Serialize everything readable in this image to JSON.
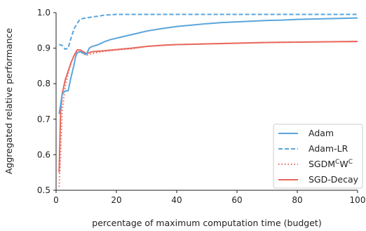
{
  "chart_data": {
    "type": "line",
    "title": "",
    "xlabel": "percentage of maximum computation time (budget)",
    "ylabel": "Aggregated relative performance",
    "xlim": [
      0,
      100
    ],
    "ylim": [
      0.5,
      1.0
    ],
    "x_ticks": [
      0,
      20,
      40,
      60,
      80,
      100
    ],
    "y_ticks": [
      0.5,
      0.6,
      0.7,
      0.8,
      0.9,
      1.0
    ],
    "x_tick_labels": [
      "0",
      "20",
      "40",
      "60",
      "80",
      "100"
    ],
    "y_tick_labels": [
      "0.5",
      "0.6",
      "0.7",
      "0.8",
      "0.9",
      "1.0"
    ],
    "grid": false,
    "legend_position": "lower-right",
    "series": [
      {
        "name": "Adam",
        "color": "#5aa5dc",
        "style": "solid",
        "x": [
          1,
          1.5,
          2,
          3,
          4,
          5,
          6,
          6.5,
          7,
          8,
          9,
          10,
          11,
          12,
          14,
          16,
          18,
          20,
          22,
          25,
          28,
          30,
          35,
          40,
          45,
          50,
          55,
          60,
          65,
          70,
          75,
          80,
          85,
          90,
          95,
          100
        ],
        "values": [
          0.715,
          0.74,
          0.77,
          0.78,
          0.78,
          0.82,
          0.855,
          0.877,
          0.887,
          0.89,
          0.886,
          0.882,
          0.9,
          0.905,
          0.91,
          0.918,
          0.924,
          0.928,
          0.932,
          0.938,
          0.944,
          0.948,
          0.955,
          0.961,
          0.965,
          0.969,
          0.972,
          0.974,
          0.976,
          0.978,
          0.979,
          0.981,
          0.982,
          0.983,
          0.984,
          0.985
        ]
      },
      {
        "name": "Adam-LR",
        "color": "#5aa5dc",
        "style": "dashed",
        "x": [
          1,
          2,
          3,
          4,
          5,
          6,
          7,
          8,
          10,
          12,
          14,
          16,
          20,
          25,
          30,
          40,
          50,
          60,
          70,
          80,
          90,
          100
        ],
        "values": [
          0.91,
          0.908,
          0.897,
          0.9,
          0.93,
          0.955,
          0.97,
          0.982,
          0.985,
          0.988,
          0.99,
          0.993,
          0.995,
          0.995,
          0.995,
          0.995,
          0.995,
          0.995,
          0.995,
          0.995,
          0.995,
          0.995
        ]
      },
      {
        "name": "SGDMᶜWᶜ",
        "color": "#e8685c",
        "style": "dotted",
        "x": [
          1,
          1.5,
          2,
          3,
          4,
          5,
          6,
          7,
          8,
          9,
          10,
          12,
          15,
          20,
          25,
          30,
          40,
          50,
          60,
          70,
          80,
          90,
          100
        ],
        "values": [
          0.51,
          0.6,
          0.72,
          0.79,
          0.83,
          0.86,
          0.88,
          0.89,
          0.89,
          0.885,
          0.88,
          0.885,
          0.89,
          0.895,
          0.898,
          0.905,
          0.91,
          0.912,
          0.914,
          0.916,
          0.917,
          0.918,
          0.918
        ]
      },
      {
        "name": "SGD-Decay",
        "color": "#e8685c",
        "style": "solid",
        "x": [
          1,
          1.5,
          2,
          3,
          4,
          5,
          6,
          7,
          8,
          9,
          10,
          12,
          15,
          20,
          25,
          30,
          35,
          40,
          50,
          60,
          70,
          80,
          90,
          100
        ],
        "values": [
          0.55,
          0.72,
          0.77,
          0.81,
          0.835,
          0.86,
          0.88,
          0.895,
          0.895,
          0.89,
          0.885,
          0.89,
          0.892,
          0.896,
          0.9,
          0.905,
          0.908,
          0.91,
          0.912,
          0.914,
          0.916,
          0.917,
          0.918,
          0.919
        ]
      }
    ]
  },
  "legend": {
    "adam": "Adam",
    "adam_lr": "Adam-LR",
    "sgdm_base": "SGDM",
    "sgdm_sup1": "C",
    "sgdm_mid": "W",
    "sgdm_sup2": "C",
    "sgd_decay": "SGD-Decay"
  }
}
